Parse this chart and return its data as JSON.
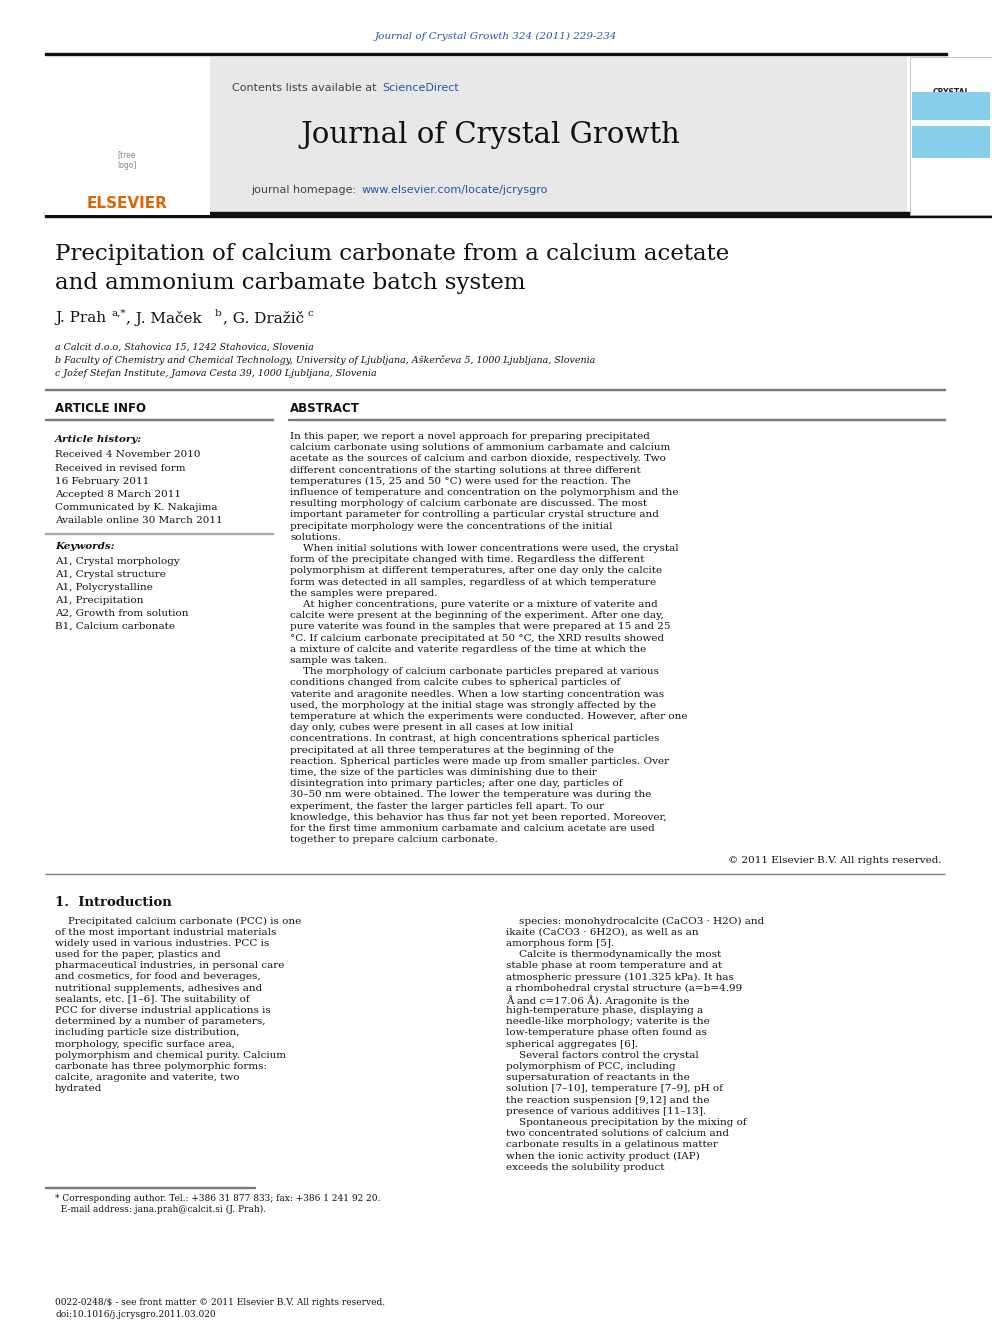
{
  "journal_ref": "Journal of Crystal Growth 324 (2011) 229-234",
  "journal_name": "Journal of Crystal Growth",
  "contents_line": "Contents lists available at ScienceDirect",
  "homepage_line": "journal homepage: www.elsevier.com/locate/jcrysgro",
  "title_line1": "Precipitation of calcium carbonate from a calcium acetate",
  "title_line2": "and ammonium carbamate batch system",
  "affil_a": "a Calcit d.o.o, Stahovica 15, 1242 Stahovica, Slovenia",
  "affil_b": "b Faculty of Chemistry and Chemical Technology, University of Ljubljana, Aškerčeva 5, 1000 Ljubljana, Slovenia",
  "affil_c": "c Jožef Stefan Institute, Jamova Cesta 39, 1000 Ljubljana, Slovenia",
  "article_info_title": "ARTICLE INFO",
  "abstract_title": "ABSTRACT",
  "article_history_title": "Article history:",
  "received": "Received 4 November 2010",
  "revised1": "Received in revised form",
  "revised2": "16 February 2011",
  "accepted": "Accepted 8 March 2011",
  "communicated": "Communicated by K. Nakajima",
  "available": "Available online 30 March 2011",
  "keywords_title": "Keywords:",
  "keywords": [
    "A1, Crystal morphology",
    "A1, Crystal structure",
    "A1, Polycrystalline",
    "A1, Precipitation",
    "A2, Growth from solution",
    "B1, Calcium carbonate"
  ],
  "abstract_paragraphs": [
    "In this paper, we report a novel approach for preparing precipitated calcium carbonate using solutions of ammonium carbamate and calcium acetate as the sources of calcium and carbon dioxide, respectively. Two different concentrations of the starting solutions at three different temperatures (15, 25 and 50 °C) were used for the reaction. The influence of temperature and concentration on the polymorphism and the resulting morphology of calcium carbonate are discussed. The most important parameter for controlling a particular crystal structure and precipitate morphology were the concentrations of the initial solutions.",
    "When initial solutions with lower concentrations were used, the crystal form of the precipitate changed with time. Regardless the different polymorphism at different temperatures, after one day only the calcite form was detected in all samples, regardless of at which temperature the samples were prepared.",
    "At higher concentrations, pure vaterite or a mixture of vaterite and calcite were present at the beginning of the experiment. After one day, pure vaterite was found in the samples that were prepared at 15 and 25 °C. If calcium carbonate precipitated at 50 °C, the XRD results showed a mixture of calcite and vaterite regardless of the time at which the sample was taken.",
    "The morphology of calcium carbonate particles prepared at various conditions changed from calcite cubes to spherical particles of vaterite and aragonite needles. When a low starting concentration was used, the morphology at the initial stage was strongly affected by the temperature at which the experiments were conducted. However, after one day only, cubes were present in all cases at low initial concentrations. In contrast, at high concentrations spherical particles precipitated at all three temperatures at the beginning of the reaction. Spherical particles were made up from smaller particles. Over time, the size of the particles was diminishing due to their disintegration into primary particles; after one day, particles of 30–50 nm were obtained. The lower the temperature was during the experiment, the faster the larger particles fell apart. To our knowledge, this behavior has thus far not yet been reported. Moreover, for the first time ammonium carbamate and calcium acetate are used together to prepare calcium carbonate."
  ],
  "copyright": "© 2011 Elsevier B.V. All rights reserved.",
  "intro_title": "1.  Introduction",
  "intro_col1_text": "Precipitated calcium carbonate (PCC) is one of the most important industrial materials widely used in various industries. PCC is used for the paper, plastics and pharmaceutical industries, in personal care and cosmetics, for food and beverages, nutritional supplements, adhesives and sealants, etc. [1–6]. The suitability of PCC for diverse industrial applications is determined by a number of parameters, including particle size distribution, morphology, specific surface area, polymorphism and chemical purity. Calcium carbonate has three polymorphic forms: calcite, aragonite and vaterite, two hydrated",
  "intro_col2_text": "species: monohydrocalcite (CaCO3 · H2O) and ikaite (CaCO3 · 6H2O), as well as an amorphous form [5].\n    Calcite is thermodynamically the most stable phase at room temperature and at atmospheric pressure (101.325 kPa). It has a rhombohedral crystal structure (a=b=4.99 Å and c=17.06 Å). Aragonite is the high-temperature phase, displaying a needle-like morphology; vaterite is the low-temperature phase often found as spherical aggregates [6].\n    Several factors control the crystal polymorphism of PCC, including supersaturation of reactants in the solution [7–10], temperature [7–9], pH of the reaction suspension [9,12] and the presence of various additives [11–13].\n    Spontaneous precipitation by the mixing of two concentrated solutions of calcium and carbonate results in a gelatinous matter when the ionic activity product (IAP) exceeds the solubility product",
  "footnote_line1": "* Corresponding author. Tel.: +386 31 877 833; fax: +386 1 241 92 20.",
  "footnote_line2": "  E-mail address: jana.prah@calcit.si (J. Prah).",
  "footer_line1": "0022-0248/$ - see front matter © 2011 Elsevier B.V. All rights reserved.",
  "footer_line2": "doi:10.1016/j.jcrysgro.2011.03.020",
  "bg_color": "#ffffff",
  "header_bg": "#e8e8e8",
  "blue_color": "#2255aa",
  "orange_color": "#dd6600",
  "black_bar": "#111111",
  "text_color": "#111111",
  "light_blue": "#87ceeb"
}
